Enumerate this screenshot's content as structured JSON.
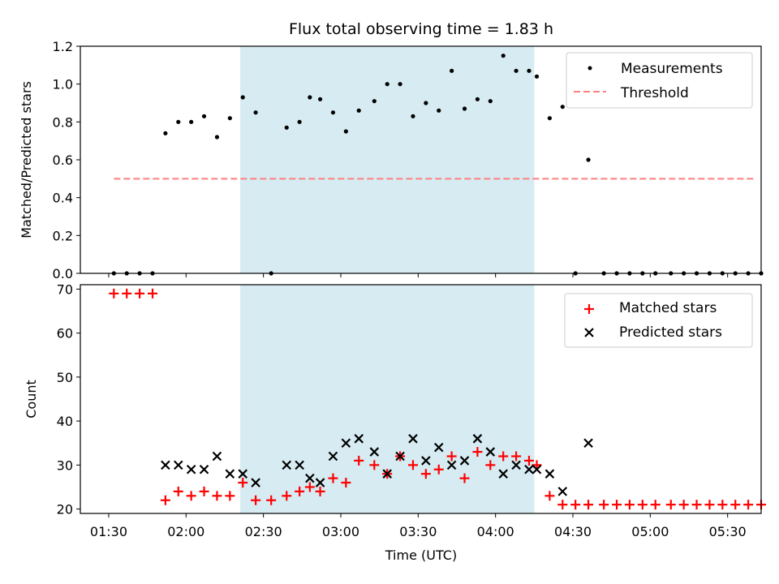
{
  "chart_data": [
    {
      "type": "scatter",
      "title": "Flux total observing time = 1.83 h",
      "xlabel": "",
      "ylabel": "Matched/Predicted stars",
      "ylim": [
        0,
        1.2
      ],
      "yticks": [
        "0.0",
        "0.2",
        "0.4",
        "0.6",
        "0.8",
        "1.0",
        "1.2"
      ],
      "x_unit": "minutes since 00:00 UTC",
      "xlim": [
        79,
        343
      ],
      "shaded_region": [
        141,
        255
      ],
      "legend": {
        "placement": "top-right",
        "entries": [
          "Measurements",
          "Threshold"
        ]
      },
      "colors": {
        "measurements": "#000000",
        "threshold": "#ff7f7f",
        "shade": "#add8e6"
      },
      "threshold": {
        "value": 0.5,
        "x_start": 92,
        "x_end": 340
      },
      "series": [
        {
          "name": "Measurements",
          "x": [
            92,
            97,
            102,
            107,
            112,
            117,
            122,
            127,
            132,
            137,
            142,
            147,
            153,
            159,
            164,
            168,
            172,
            177,
            182,
            187,
            193,
            198,
            203,
            208,
            213,
            218,
            223,
            228,
            233,
            238,
            243,
            248,
            253,
            256,
            261,
            266,
            271,
            276,
            282,
            287,
            292,
            297,
            302,
            308,
            313,
            318,
            323,
            328,
            333,
            338,
            343
          ],
          "y": [
            0,
            0,
            0,
            0,
            0.74,
            0.8,
            0.8,
            0.83,
            0.72,
            0.82,
            0.93,
            0.85,
            0,
            0.77,
            0.8,
            0.93,
            0.92,
            0.85,
            0.75,
            0.86,
            0.91,
            1.0,
            1.0,
            0.83,
            0.9,
            0.86,
            1.07,
            0.87,
            0.92,
            0.91,
            1.15,
            1.07,
            1.07,
            1.04,
            0.82,
            0.88,
            0,
            0.6,
            0,
            0,
            0,
            0,
            0,
            0,
            0,
            0,
            0,
            0,
            0,
            0,
            0
          ]
        }
      ]
    },
    {
      "type": "scatter",
      "xlabel": "Time (UTC)",
      "ylabel": "Count",
      "ylim": [
        19,
        71
      ],
      "yticks": [
        "20",
        "30",
        "40",
        "50",
        "60",
        "70"
      ],
      "x_unit": "minutes since 00:00 UTC",
      "xlim": [
        79,
        343
      ],
      "xticks": [
        "01:30",
        "02:00",
        "02:30",
        "03:00",
        "03:30",
        "04:00",
        "04:30",
        "05:00",
        "05:30"
      ],
      "shaded_region": [
        141,
        255
      ],
      "legend": {
        "placement": "top-right",
        "entries": [
          "Matched stars",
          "Predicted stars"
        ]
      },
      "colors": {
        "matched": "#ff0000",
        "predicted": "#000000",
        "shade": "#add8e6"
      },
      "series": [
        {
          "name": "Matched stars",
          "marker": "plus",
          "x": [
            92,
            97,
            102,
            107,
            112,
            117,
            122,
            127,
            132,
            137,
            142,
            147,
            153,
            159,
            164,
            168,
            172,
            177,
            182,
            187,
            193,
            198,
            203,
            208,
            213,
            218,
            223,
            228,
            233,
            238,
            243,
            248,
            253,
            256,
            261,
            266,
            271,
            276,
            282,
            287,
            292,
            297,
            302,
            308,
            313,
            318,
            323,
            328,
            333,
            338,
            343
          ],
          "y": [
            69,
            69,
            69,
            69,
            22,
            24,
            23,
            24,
            23,
            23,
            26,
            22,
            22,
            23,
            24,
            25,
            24,
            27,
            26,
            31,
            30,
            28,
            32,
            30,
            28,
            29,
            32,
            27,
            33,
            30,
            32,
            32,
            31,
            30,
            23,
            21,
            21,
            21,
            21,
            21,
            21,
            21,
            21,
            21,
            21,
            21,
            21,
            21,
            21,
            21,
            21
          ]
        },
        {
          "name": "Predicted stars",
          "marker": "x",
          "x": [
            112,
            117,
            122,
            127,
            132,
            137,
            142,
            147,
            159,
            164,
            168,
            172,
            177,
            182,
            187,
            193,
            198,
            203,
            208,
            213,
            218,
            223,
            228,
            233,
            238,
            243,
            248,
            253,
            256,
            261,
            266,
            276
          ],
          "y": [
            30,
            30,
            29,
            29,
            32,
            28,
            28,
            26,
            30,
            30,
            27,
            26,
            32,
            35,
            36,
            33,
            28,
            32,
            36,
            31,
            34,
            30,
            31,
            36,
            33,
            28,
            30,
            29,
            29,
            28,
            24,
            35
          ]
        }
      ]
    }
  ]
}
